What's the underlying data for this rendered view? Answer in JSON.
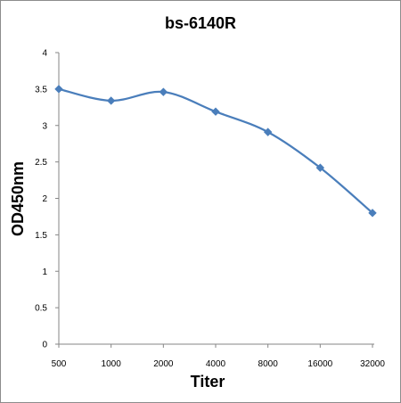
{
  "chart_data": {
    "type": "line",
    "title": "bs-6140R",
    "xlabel": "Titer",
    "ylabel": "OD450nm",
    "categories": [
      "500",
      "1000",
      "2000",
      "4000",
      "8000",
      "16000",
      "32000"
    ],
    "series": [
      {
        "values": [
          3.5,
          3.34,
          3.46,
          3.19,
          2.91,
          2.42,
          1.8
        ],
        "color": "#4a7ebb"
      }
    ],
    "ylim": [
      0,
      4
    ],
    "yticks": [
      "0",
      "0.5",
      "1",
      "1.5",
      "2",
      "2.5",
      "3",
      "3.5",
      "4"
    ],
    "grid": false,
    "legend": "none",
    "marker": "diamond",
    "smooth": true
  }
}
